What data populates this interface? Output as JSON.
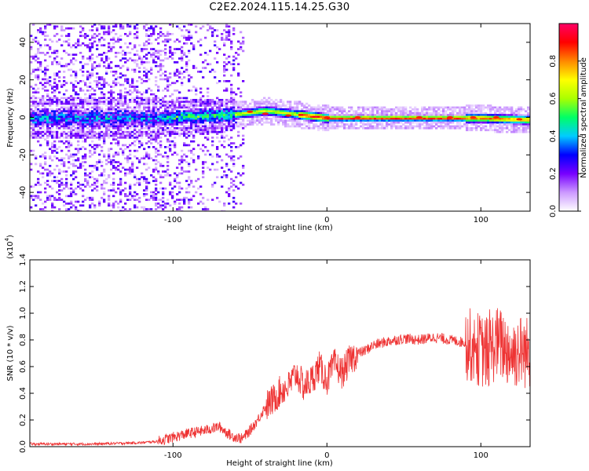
{
  "title": "C2E2.2024.115.14.25.G30",
  "chart_data": [
    {
      "type": "heatmap",
      "xlabel": "Height of straight line (km)",
      "ylabel": "Frequency (Hz)",
      "xlim": [
        -193,
        132
      ],
      "ylim": [
        -50,
        50
      ],
      "xticks": [
        -100,
        0,
        100
      ],
      "xtick_labels": [
        "-100",
        "0",
        "100"
      ],
      "yticks": [
        -40,
        -20,
        0,
        20,
        40
      ],
      "ytick_labels": [
        "-40",
        "-20",
        "0",
        "20",
        "40"
      ],
      "colorbar": {
        "label": "Normalized spectral amplitude",
        "range": [
          0,
          1
        ],
        "ticks": [
          "0.0",
          "0.2",
          "0.4",
          "0.6",
          "0.8"
        ],
        "colors": [
          "#ffffff",
          "#cc99ff",
          "#7700ff",
          "#0000ff",
          "#00ccff",
          "#00ff66",
          "#aaff00",
          "#ffff00",
          "#ff8800",
          "#ff0000",
          "#ff0066"
        ]
      },
      "ridge": {
        "description_points_x": [
          -193,
          -110,
          -60,
          -40,
          -20,
          0,
          40,
          80,
          100,
          132
        ],
        "center_freq": [
          0,
          0,
          2,
          4,
          2,
          0,
          0,
          0,
          0,
          -1
        ]
      }
    },
    {
      "type": "line",
      "xlabel": "Height of straight line (km)",
      "ylabel": "SNR (10 * v/v)",
      "y_multiplier": "(x10",
      "y_multiplier_exp": "4",
      "xlim": [
        -193,
        132
      ],
      "ylim": [
        0,
        1.4
      ],
      "xticks": [
        -100,
        0,
        100
      ],
      "xtick_labels": [
        "-100",
        "0",
        "100"
      ],
      "yticks": [
        0,
        0.2,
        0.4,
        0.6,
        0.8,
        1.0,
        1.2,
        1.4
      ],
      "ytick_labels": [
        "0.0",
        "0.2",
        "0.4",
        "0.6",
        "0.8",
        "1.0",
        "1.2",
        "1.4"
      ],
      "series": [
        {
          "color": "#ee3333",
          "x": [
            -193,
            -150,
            -120,
            -110,
            -100,
            -90,
            -80,
            -70,
            -62,
            -55,
            -50,
            -45,
            -40,
            -35,
            -30,
            -25,
            -20,
            -15,
            -10,
            -5,
            0,
            5,
            10,
            15,
            20,
            25,
            30,
            40,
            50,
            60,
            70,
            80,
            90,
            95,
            100,
            105,
            110,
            115,
            120,
            125,
            132
          ],
          "y": [
            0.02,
            0.02,
            0.03,
            0.04,
            0.07,
            0.1,
            0.12,
            0.15,
            0.08,
            0.06,
            0.12,
            0.2,
            0.3,
            0.35,
            0.42,
            0.45,
            0.55,
            0.45,
            0.5,
            0.6,
            0.5,
            0.62,
            0.55,
            0.65,
            0.7,
            0.72,
            0.76,
            0.79,
            0.81,
            0.8,
            0.82,
            0.8,
            0.78,
            0.75,
            0.72,
            0.7,
            0.78,
            0.75,
            0.7,
            0.72,
            0.7
          ]
        }
      ]
    }
  ]
}
